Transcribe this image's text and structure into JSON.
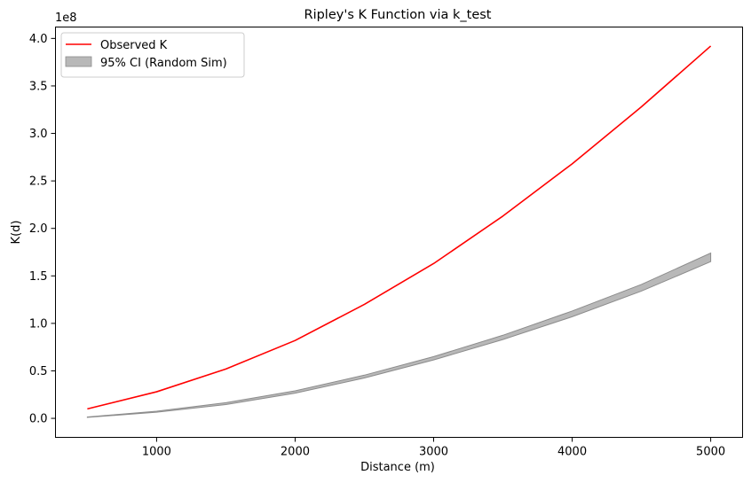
{
  "chart_data": {
    "type": "line",
    "title": "Ripley's K Function via k_test",
    "xlabel": "Distance (m)",
    "ylabel": "K(d)",
    "y_offset_text": "1e8",
    "xlim": [
      270,
      5230
    ],
    "ylim": [
      -0.2,
      4.12
    ],
    "x_ticks": [
      1000,
      2000,
      3000,
      4000,
      5000
    ],
    "x_tick_labels": [
      "1000",
      "2000",
      "3000",
      "4000",
      "5000"
    ],
    "y_ticks": [
      0.0,
      0.5,
      1.0,
      1.5,
      2.0,
      2.5,
      3.0,
      3.5,
      4.0
    ],
    "y_tick_labels": [
      "0.0",
      "0.5",
      "1.0",
      "1.5",
      "2.0",
      "2.5",
      "3.0",
      "3.5",
      "4.0"
    ],
    "y_scale_note": "values in units of 1e8",
    "grid": false,
    "legend_position": "top-left",
    "x": [
      500,
      1000,
      1500,
      2000,
      2500,
      3000,
      3500,
      4000,
      4500,
      5000
    ],
    "series": [
      {
        "name": "Observed K",
        "kind": "line",
        "color": "#ff0000",
        "values": [
          0.1,
          0.28,
          0.52,
          0.82,
          1.2,
          1.63,
          2.13,
          2.68,
          3.28,
          3.92
        ]
      },
      {
        "name": "95% CI (Random Sim)",
        "kind": "band",
        "color": "#a0a0a0",
        "lower": [
          0.01,
          0.065,
          0.145,
          0.265,
          0.425,
          0.615,
          0.83,
          1.07,
          1.34,
          1.65
        ],
        "upper": [
          0.015,
          0.075,
          0.165,
          0.29,
          0.455,
          0.65,
          0.875,
          1.13,
          1.41,
          1.74
        ]
      }
    ]
  }
}
